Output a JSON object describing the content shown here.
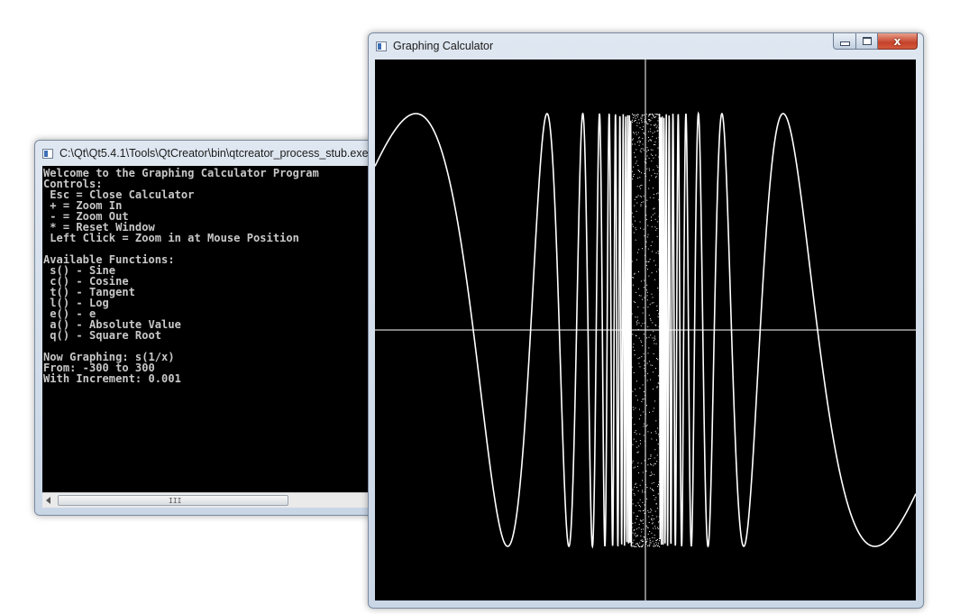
{
  "console": {
    "title": "C:\\Qt\\Qt5.4.1\\Tools\\QtCreator\\bin\\qtcreator_process_stub.exe",
    "lines": [
      "Welcome to the Graphing Calculator Program",
      "Controls:",
      " Esc = Close Calculator",
      " + = Zoom In",
      " - = Zoom Out",
      " * = Reset Window",
      " Left Click = Zoom in at Mouse Position",
      "",
      "Available Functions:",
      " s() - Sine",
      " c() - Cosine",
      " t() - Tangent",
      " l() - Log",
      " e() - e",
      " a() - Absolute Value",
      " q() - Square Root",
      "",
      "Now Graphing: s(1/x)",
      "From: -300 to 300",
      "With Increment: 0.001"
    ],
    "scrollbar_grip": "III"
  },
  "graph_window": {
    "title": "Graphing Calculator",
    "close_glyph": "x"
  },
  "plot": {
    "function": "s(1/x)",
    "x_range": [
      -0.25,
      0.25
    ],
    "y_range": [
      -1.25,
      1.25
    ],
    "background_color": "#000000",
    "curve_color": "#ffffff",
    "axis_color": "#ffffff"
  },
  "icons": {
    "console_app": "console-icon",
    "graph_app": "window-icon",
    "minimize": "minimize-icon",
    "maximize": "maximize-icon",
    "close": "close-icon",
    "scroll_left": "arrow-left-icon"
  }
}
